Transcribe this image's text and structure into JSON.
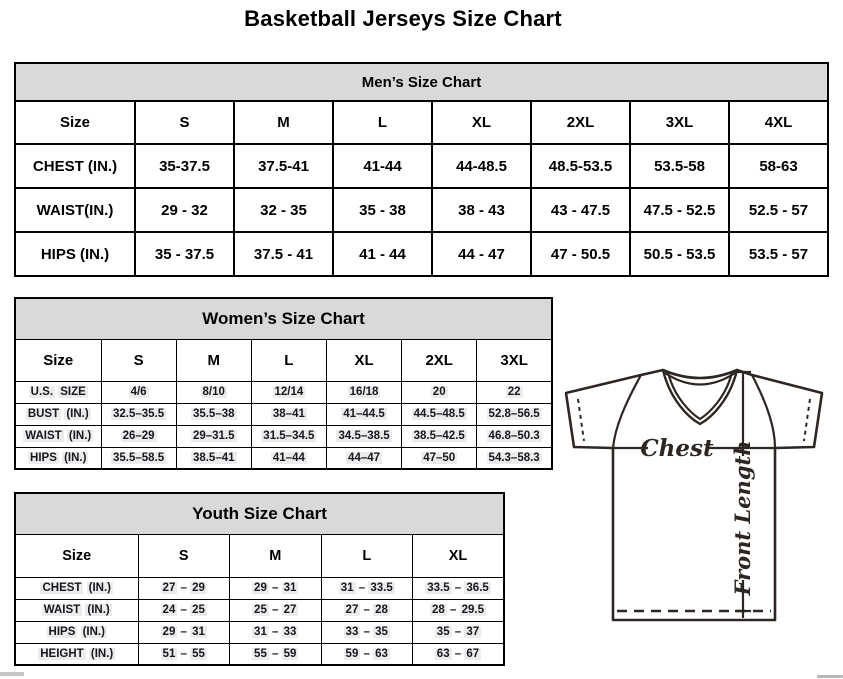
{
  "title": "Basketball Jerseys Size Chart",
  "mens_table": {
    "caption": "Men’s Size Chart",
    "columns": [
      "Size",
      "S",
      "M",
      "L",
      "XL",
      "2XL",
      "3XL",
      "4XL"
    ],
    "rows": [
      {
        "label": "CHEST (IN.)",
        "values": [
          "35-37.5",
          "37.5-41",
          "41-44",
          "44-48.5",
          "48.5-53.5",
          "53.5-58",
          "58-63"
        ]
      },
      {
        "label": "WAIST(IN.)",
        "values": [
          "29 - 32",
          "32 - 35",
          "35 - 38",
          "38 - 43",
          "43 - 47.5",
          "47.5 - 52.5",
          "52.5 - 57"
        ]
      },
      {
        "label": "HIPS (IN.)",
        "values": [
          "35 - 37.5",
          "37.5 - 41",
          "41 - 44",
          "44 - 47",
          "47 - 50.5",
          "50.5 - 53.5",
          "53.5 - 57"
        ]
      }
    ]
  },
  "womens_table": {
    "caption": "Women’s Size Chart",
    "columns": [
      "Size",
      "S",
      "M",
      "L",
      "XL",
      "2XL",
      "3XL"
    ],
    "rows": [
      {
        "label": "U.S. SIZE",
        "values": [
          "4/6",
          "8/10",
          "12/14",
          "16/18",
          "20",
          "22"
        ]
      },
      {
        "label": "BUST (IN.)",
        "values": [
          "32.5–35.5",
          "35.5–38",
          "38–41",
          "41–44.5",
          "44.5–48.5",
          "52.8–56.5"
        ]
      },
      {
        "label": "WAIST (IN.)",
        "values": [
          "26–29",
          "29–31.5",
          "31.5–34.5",
          "34.5–38.5",
          "38.5–42.5",
          "46.8–50.3"
        ]
      },
      {
        "label": "HIPS (IN.)",
        "values": [
          "35.5–58.5",
          "38.5–41",
          "41–44",
          "44–47",
          "47–50",
          "54.3–58.3"
        ]
      }
    ]
  },
  "youth_table": {
    "caption": "Youth Size Chart",
    "columns": [
      "Size",
      "S",
      "M",
      "L",
      "XL"
    ],
    "rows": [
      {
        "label": "CHEST (IN.)",
        "values": [
          "27 – 29",
          "29 – 31",
          "31 – 33.5",
          "33.5 – 36.5"
        ]
      },
      {
        "label": "WAIST (IN.)",
        "values": [
          "24 – 25",
          "25 – 27",
          "27 – 28",
          "28 – 29.5"
        ]
      },
      {
        "label": "HIPS (IN.)",
        "values": [
          "29 – 31",
          "31 – 33",
          "33 – 35",
          "35 – 37"
        ]
      },
      {
        "label": "HEIGHT (IN.)",
        "values": [
          "51 – 55",
          "55 – 59",
          "59 – 63",
          "63 – 67"
        ]
      }
    ]
  },
  "diagram": {
    "chest_label": "Chest",
    "front_length_label": "Front Length"
  },
  "colors": {
    "table_header_bg": "#d9d9d9",
    "table_border": "#000000",
    "highlight_bg": "#ececec",
    "diagram_line": "#2e2622"
  }
}
